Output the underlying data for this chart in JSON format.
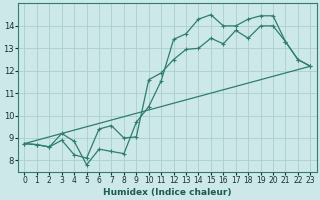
{
  "title": "",
  "xlabel": "Humidex (Indice chaleur)",
  "ylabel": "",
  "bg_color": "#cde8e8",
  "line_color": "#2e7d6e",
  "grid_color": "#aacfcf",
  "xlim": [
    -0.5,
    23.5
  ],
  "ylim": [
    7.5,
    15.0
  ],
  "xticks": [
    0,
    1,
    2,
    3,
    4,
    5,
    6,
    7,
    8,
    9,
    10,
    11,
    12,
    13,
    14,
    15,
    16,
    17,
    18,
    19,
    20,
    21,
    22,
    23
  ],
  "yticks": [
    8,
    9,
    10,
    11,
    12,
    13,
    14
  ],
  "line1_x": [
    0,
    1,
    2,
    3,
    4,
    5,
    6,
    7,
    8,
    9,
    10,
    11,
    12,
    13,
    14,
    15,
    16,
    17,
    18,
    19,
    20,
    21,
    22,
    23
  ],
  "line1_y": [
    8.75,
    8.7,
    8.6,
    9.2,
    8.85,
    7.8,
    8.5,
    8.4,
    8.3,
    9.7,
    10.4,
    11.55,
    13.4,
    13.65,
    14.3,
    14.5,
    14.0,
    14.0,
    14.3,
    14.45,
    14.45,
    13.3,
    12.5,
    12.2
  ],
  "line2_x": [
    0,
    1,
    2,
    3,
    4,
    5,
    6,
    7,
    8,
    9,
    10,
    11,
    12,
    13,
    14,
    15,
    16,
    17,
    18,
    19,
    20,
    21,
    22,
    23
  ],
  "line2_y": [
    8.75,
    8.7,
    8.6,
    8.9,
    8.25,
    8.1,
    9.4,
    9.55,
    9.0,
    9.05,
    11.6,
    11.9,
    12.5,
    12.95,
    13.0,
    13.45,
    13.2,
    13.8,
    13.45,
    14.0,
    14.0,
    13.3,
    12.5,
    12.2
  ],
  "line3_x": [
    0,
    23
  ],
  "line3_y": [
    8.75,
    12.2
  ]
}
